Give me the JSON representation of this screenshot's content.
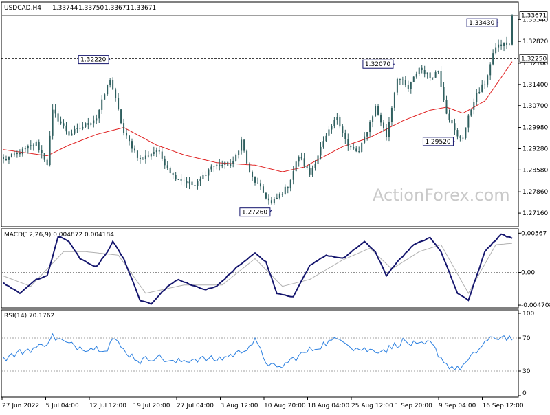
{
  "header": {
    "symbol": "USDCAD,H4",
    "open": "1.33744",
    "high": "1.33750",
    "low": "1.33671",
    "close": "1.33671"
  },
  "watermark": "ActionForex.com",
  "colors": {
    "candle": "#2f5f5f",
    "ma": "#e02020",
    "macd": "#15166e",
    "signal": "#b0b0b0",
    "rsi": "#2a7fe0",
    "axis": "#000000",
    "dotted": "#808080"
  },
  "chart_data": [
    {
      "type": "candlestick",
      "title": "",
      "ylim": [
        1.268,
        1.34
      ],
      "y_ticks": [
        "1.33540",
        "1.32820",
        "1.32100",
        "1.31400",
        "1.30700",
        "1.29980",
        "1.29280",
        "1.28580",
        "1.27860",
        "1.27160"
      ],
      "current_price_label": "1.33671",
      "current_price": 1.33671,
      "horizontal_lines": [
        {
          "value": 1.3225,
          "label": "1.32250"
        }
      ],
      "annotations": [
        {
          "label": "1.32220",
          "value": 1.3222,
          "x_index": 39
        },
        {
          "label": "1.27260",
          "value": 1.2726,
          "x_index": 98
        },
        {
          "label": "1.32070",
          "value": 1.3207,
          "x_index": 143
        },
        {
          "label": "1.29520",
          "value": 1.2952,
          "x_index": 165
        },
        {
          "label": "1.33430",
          "value": 1.3343,
          "x_index": 181
        }
      ],
      "anchors": [
        [
          0,
          1.289
        ],
        [
          8,
          1.2925
        ],
        [
          12,
          1.2945
        ],
        [
          16,
          1.288
        ],
        [
          18,
          1.305
        ],
        [
          24,
          1.2975
        ],
        [
          28,
          1.2995
        ],
        [
          34,
          1.303
        ],
        [
          39,
          1.316
        ],
        [
          44,
          1.298
        ],
        [
          50,
          1.289
        ],
        [
          56,
          1.2925
        ],
        [
          62,
          1.284
        ],
        [
          70,
          1.2805
        ],
        [
          76,
          1.287
        ],
        [
          84,
          1.288
        ],
        [
          87,
          1.2955
        ],
        [
          90,
          1.2845
        ],
        [
          96,
          1.277
        ],
        [
          98,
          1.2745
        ],
        [
          104,
          1.2805
        ],
        [
          108,
          1.2905
        ],
        [
          112,
          1.2845
        ],
        [
          116,
          1.293
        ],
        [
          122,
          1.3035
        ],
        [
          126,
          1.2935
        ],
        [
          130,
          1.2915
        ],
        [
          136,
          1.3065
        ],
        [
          140,
          1.297
        ],
        [
          144,
          1.3165
        ],
        [
          148,
          1.3125
        ],
        [
          152,
          1.3195
        ],
        [
          156,
          1.3165
        ],
        [
          159,
          1.3185
        ],
        [
          162,
          1.305
        ],
        [
          166,
          1.2965
        ],
        [
          168,
          1.2968
        ],
        [
          172,
          1.309
        ],
        [
          176,
          1.3145
        ],
        [
          180,
          1.3265
        ],
        [
          184,
          1.3275
        ],
        [
          186,
          1.3267
        ]
      ],
      "moving_average": {
        "period": "",
        "anchors": [
          [
            0,
            1.2925
          ],
          [
            16,
            1.2905
          ],
          [
            24,
            1.294
          ],
          [
            34,
            1.2975
          ],
          [
            44,
            1.2998
          ],
          [
            56,
            1.294
          ],
          [
            66,
            1.2908
          ],
          [
            78,
            1.2882
          ],
          [
            92,
            1.2874
          ],
          [
            102,
            1.2852
          ],
          [
            110,
            1.2868
          ],
          [
            124,
            1.2935
          ],
          [
            134,
            1.2965
          ],
          [
            146,
            1.302
          ],
          [
            156,
            1.3055
          ],
          [
            162,
            1.3065
          ],
          [
            168,
            1.3045
          ],
          [
            176,
            1.3085
          ],
          [
            186,
            1.3215
          ]
        ]
      },
      "x_labels": [
        "27 Jun 2022",
        "5 Jul 04:00",
        "12 Jul 12:00",
        "19 Jul 20:00",
        "27 Jul 04:00",
        "3 Aug 12:00",
        "10 Aug 20:00",
        "18 Aug 04:00",
        "25 Aug 12:00",
        "1 Sep 20:00",
        "9 Sep 04:00",
        "16 Sep 12:00"
      ]
    },
    {
      "type": "line",
      "title": "MACD(12,26,9) 0.004872 0.004184",
      "ylim": [
        -0.0049,
        0.0058
      ],
      "y_ticks": [
        "0.00567",
        "0.00",
        "-0.004708"
      ],
      "series": [
        {
          "name": "MACD",
          "anchors": [
            [
              0,
              -0.0015
            ],
            [
              6,
              -0.003
            ],
            [
              12,
              -0.001
            ],
            [
              16,
              -0.0005
            ],
            [
              20,
              0.0052
            ],
            [
              24,
              0.0045
            ],
            [
              28,
              0.002
            ],
            [
              34,
              0.0008
            ],
            [
              38,
              0.003
            ],
            [
              40,
              0.0045
            ],
            [
              44,
              0.002
            ],
            [
              50,
              -0.004
            ],
            [
              54,
              -0.0045
            ],
            [
              60,
              -0.002
            ],
            [
              64,
              -0.001
            ],
            [
              70,
              -0.002
            ],
            [
              74,
              -0.0025
            ],
            [
              78,
              -0.002
            ],
            [
              86,
              0.001
            ],
            [
              92,
              0.0028
            ],
            [
              96,
              0.0015
            ],
            [
              100,
              -0.003
            ],
            [
              106,
              -0.0035
            ],
            [
              112,
              0.001
            ],
            [
              118,
              0.0025
            ],
            [
              124,
              0.002
            ],
            [
              132,
              0.0045
            ],
            [
              136,
              0.003
            ],
            [
              140,
              -0.0005
            ],
            [
              144,
              0.0015
            ],
            [
              150,
              0.004
            ],
            [
              156,
              0.005
            ],
            [
              160,
              0.003
            ],
            [
              166,
              -0.003
            ],
            [
              170,
              -0.004
            ],
            [
              176,
              0.003
            ],
            [
              182,
              0.0055
            ],
            [
              186,
              0.0049
            ]
          ]
        },
        {
          "name": "Signal",
          "anchors": [
            [
              0,
              -0.0005
            ],
            [
              10,
              -0.002
            ],
            [
              22,
              0.003
            ],
            [
              30,
              0.003
            ],
            [
              42,
              0.0025
            ],
            [
              52,
              -0.003
            ],
            [
              66,
              -0.0018
            ],
            [
              80,
              -0.0018
            ],
            [
              92,
              0.002
            ],
            [
              102,
              -0.002
            ],
            [
              112,
              -0.001
            ],
            [
              124,
              0.0018
            ],
            [
              134,
              0.0035
            ],
            [
              142,
              0.0005
            ],
            [
              152,
              0.003
            ],
            [
              160,
              0.004
            ],
            [
              170,
              -0.003
            ],
            [
              180,
              0.004
            ],
            [
              186,
              0.0042
            ]
          ]
        }
      ]
    },
    {
      "type": "line",
      "title": "RSI(14) 70.1762",
      "ylim": [
        0,
        100
      ],
      "y_ticks": [
        "100",
        "70",
        "30",
        "0"
      ],
      "levels": [
        70,
        30
      ],
      "series": [
        {
          "name": "RSI",
          "anchors": [
            [
              0,
              45
            ],
            [
              8,
              55
            ],
            [
              14,
              60
            ],
            [
              18,
              72
            ],
            [
              24,
              62
            ],
            [
              30,
              58
            ],
            [
              38,
              58
            ],
            [
              40,
              70
            ],
            [
              44,
              55
            ],
            [
              50,
              42
            ],
            [
              56,
              48
            ],
            [
              62,
              40
            ],
            [
              70,
              45
            ],
            [
              78,
              44
            ],
            [
              86,
              52
            ],
            [
              92,
              66
            ],
            [
              96,
              42
            ],
            [
              100,
              32
            ],
            [
              106,
              45
            ],
            [
              112,
              55
            ],
            [
              118,
              64
            ],
            [
              124,
              70
            ],
            [
              128,
              58
            ],
            [
              134,
              55
            ],
            [
              140,
              56
            ],
            [
              146,
              66
            ],
            [
              152,
              60
            ],
            [
              156,
              64
            ],
            [
              162,
              38
            ],
            [
              166,
              32
            ],
            [
              170,
              42
            ],
            [
              176,
              65
            ],
            [
              182,
              72
            ],
            [
              186,
              70
            ]
          ]
        }
      ]
    }
  ]
}
